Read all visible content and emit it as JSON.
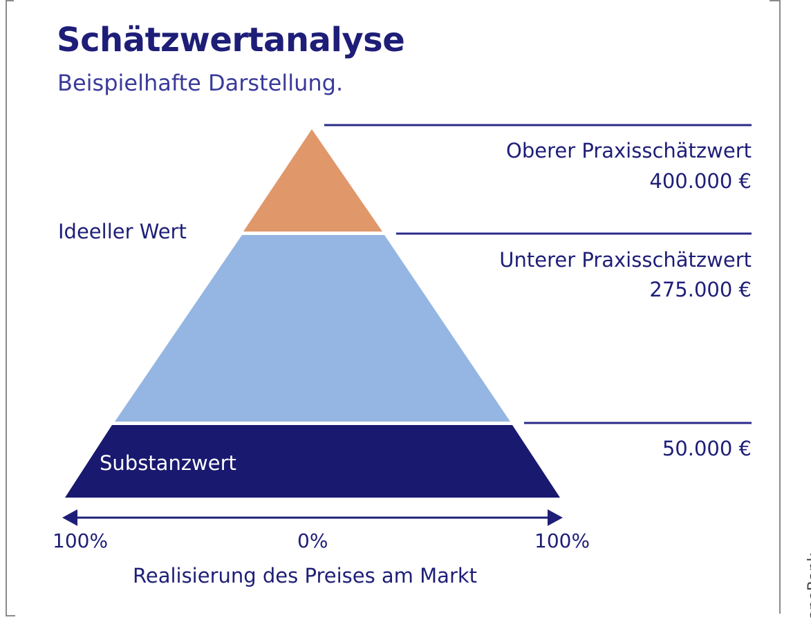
{
  "title": "Schätzwertanalyse",
  "subtitle": "Beispielhafte Darstellung.",
  "levels": {
    "upper": {
      "label": "Oberer Praxisschätzwert",
      "value": "400.000 €"
    },
    "lower": {
      "label": "Unterer Praxisschätzwert",
      "value": "275.000 €"
    },
    "base": {
      "value": "50.000 €"
    }
  },
  "segments": {
    "top": {
      "color": "#e0976a"
    },
    "middle": {
      "label": "Ideeller Wert",
      "color": "#95b6e2"
    },
    "bottom": {
      "label": "Substanzwert",
      "color": "#191970"
    }
  },
  "axis": {
    "left_tick": "100%",
    "center_tick": "0%",
    "right_tick": "100%",
    "label": "Realisierung des Preises am Markt"
  },
  "credit": "apoBank",
  "colors": {
    "text": "#1e1e78",
    "lines": "#2a2a8a"
  }
}
